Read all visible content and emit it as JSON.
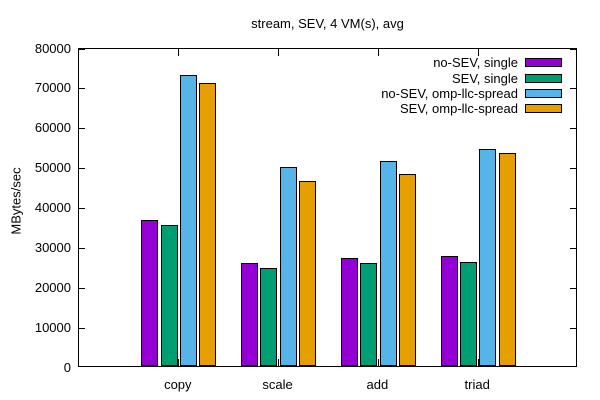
{
  "chart_data": {
    "type": "bar",
    "title": "stream, SEV, 4 VM(s), avg",
    "xlabel": "",
    "ylabel": "MBytes/sec",
    "categories": [
      "copy",
      "scale",
      "add",
      "triad"
    ],
    "series": [
      {
        "name": "no-SEV, single",
        "color": "#9400D3",
        "values": [
          36700,
          25900,
          27100,
          27500
        ]
      },
      {
        "name": "SEV, single",
        "color": "#009E73",
        "values": [
          35300,
          24600,
          25900,
          26200
        ]
      },
      {
        "name": "no-SEV, omp-llc-spread",
        "color": "#56B4E9",
        "values": [
          73100,
          49800,
          51500,
          54400
        ]
      },
      {
        "name": "SEV, omp-llc-spread",
        "color": "#E69F00",
        "values": [
          71000,
          46300,
          48200,
          53400
        ]
      }
    ],
    "ylim": [
      0,
      80000
    ],
    "ytick_step": 10000,
    "ytick_labels": [
      "0",
      "10000",
      "20000",
      "30000",
      "40000",
      "50000",
      "60000",
      "70000",
      "80000"
    ],
    "legend_position": "top-right",
    "grid": false,
    "axis_color": "#000000",
    "background_color": "#FFFFFF"
  }
}
